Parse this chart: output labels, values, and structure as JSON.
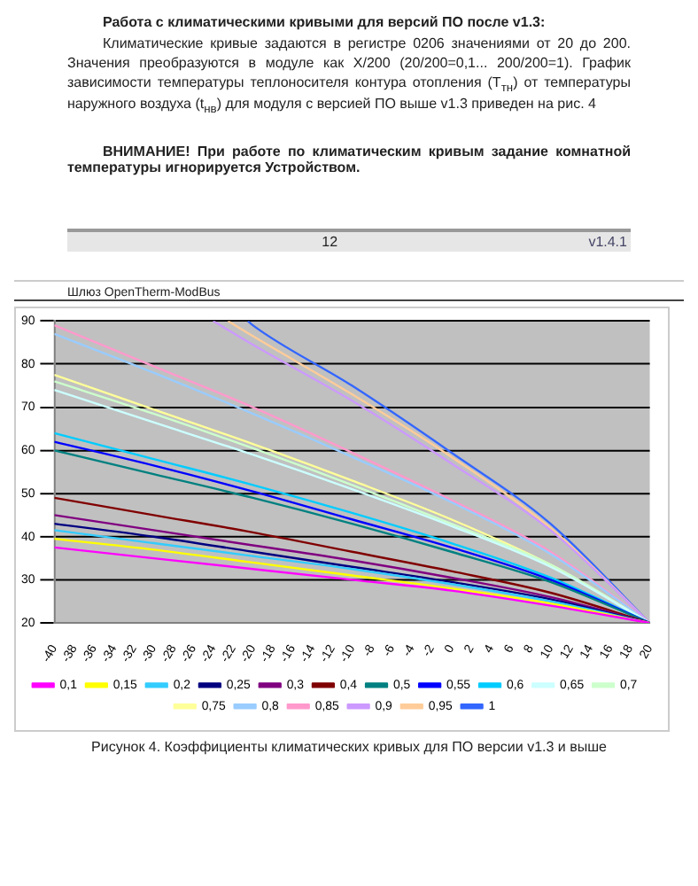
{
  "chart_data": {
    "type": "line",
    "title": "Рисунок 4. Коэффициенты климатических кривых для ПО версии v1.3 и выше",
    "annotations": [
      "Работа с климатическими кривыми для версий ПО после v1.3:",
      "Климатические кривые задаются в регистре 0206 значениями от 20 до 200. Значения преобразуются в модуле как X/200 (20/200=0,1... 200/200=1). График зависимости температуры теплоносителя контура отопления (T$_{тн}$) от температуры наружного воздуха (t$_{нв}$) для модуля с версией ПО выше v1.3 приведен на рис. 4",
      "ВНИМАНИЕ! При работе по климатическим кривым задание комнатной температуры игнорируется Устройством.",
      "12",
      "v1.4.1",
      "Шлюз OpenTherm-ModBus"
    ],
    "x": [
      -40,
      -30,
      -20,
      -10,
      0,
      10,
      20
    ],
    "series": [
      {
        "name": "0,1",
        "color": "#ff00ff",
        "values": [
          37.5,
          35,
          32.5,
          30,
          27.5,
          24,
          20
        ]
      },
      {
        "name": "0,15",
        "color": "#ffff00",
        "values": [
          39.5,
          37,
          34,
          31,
          28,
          24.5,
          20
        ]
      },
      {
        "name": "0,2",
        "color": "#33ccff",
        "values": [
          41.5,
          38.5,
          35.5,
          32.5,
          29,
          25,
          20
        ]
      },
      {
        "name": "0,25",
        "color": "#000080",
        "values": [
          43,
          40,
          36.5,
          33,
          29.5,
          25.5,
          20
        ]
      },
      {
        "name": "0,3",
        "color": "#800080",
        "values": [
          45,
          41.5,
          38,
          34.5,
          30.5,
          26,
          20
        ]
      },
      {
        "name": "0,4",
        "color": "#800000",
        "values": [
          49,
          45,
          41,
          36.5,
          32,
          27,
          20
        ]
      },
      {
        "name": "0,5",
        "color": "#008080",
        "values": [
          60,
          54.5,
          49,
          43,
          36.5,
          29.5,
          20
        ]
      },
      {
        "name": "0,55",
        "color": "#0000ff",
        "values": [
          62,
          56.5,
          50.5,
          44,
          37.5,
          30,
          20
        ]
      },
      {
        "name": "0,6",
        "color": "#00ccff",
        "values": [
          64,
          58,
          52,
          45.5,
          38.5,
          30.5,
          20
        ]
      },
      {
        "name": "0,65",
        "color": "#ccffff",
        "values": [
          74,
          66.5,
          59,
          51,
          42.5,
          33,
          20
        ]
      },
      {
        "name": "0,7",
        "color": "#ccffcc",
        "values": [
          76,
          68.5,
          60.5,
          52,
          43,
          33.5,
          20
        ]
      },
      {
        "name": "0,75",
        "color": "#ffff99",
        "values": [
          77.5,
          69.5,
          61.5,
          53,
          44,
          33.5,
          20
        ]
      },
      {
        "name": "0,8",
        "color": "#99ccff",
        "values": [
          87,
          78,
          68.5,
          58.5,
          48,
          36,
          20
        ]
      },
      {
        "name": "0,85",
        "color": "#ff99cc",
        "values": [
          89,
          79.5,
          70,
          59.5,
          48.5,
          36.5,
          20
        ]
      },
      {
        "name": "0,9",
        "color": "#cc99ff",
        "x": [
          -24,
          -20,
          -10,
          0,
          10,
          20
        ],
        "values": [
          90,
          84.5,
          71.5,
          57,
          41.5,
          20
        ]
      },
      {
        "name": "0,95",
        "color": "#ffcc99",
        "x": [
          -22.5,
          -20,
          -10,
          0,
          10,
          20
        ],
        "values": [
          90,
          86.5,
          73,
          58.5,
          42,
          20
        ]
      },
      {
        "name": "1",
        "color": "#3366ff",
        "x": [
          -20.5,
          -20,
          -10,
          0,
          10,
          20
        ],
        "values": [
          90,
          89,
          75,
          59.5,
          43,
          20
        ]
      }
    ],
    "xlim": [
      -40,
      20
    ],
    "xticks": [
      -40,
      -38,
      -36,
      -34,
      -32,
      -30,
      -28,
      -26,
      -24,
      -22,
      -20,
      -18,
      -16,
      -14,
      -12,
      -10,
      -8,
      -6,
      -4,
      -2,
      0,
      2,
      4,
      6,
      8,
      10,
      12,
      14,
      16,
      18,
      20
    ],
    "ylim": [
      20,
      90
    ],
    "yticks": [
      20,
      30,
      40,
      50,
      60,
      70,
      80,
      90
    ],
    "grid": "y",
    "legend": "bottom"
  }
}
